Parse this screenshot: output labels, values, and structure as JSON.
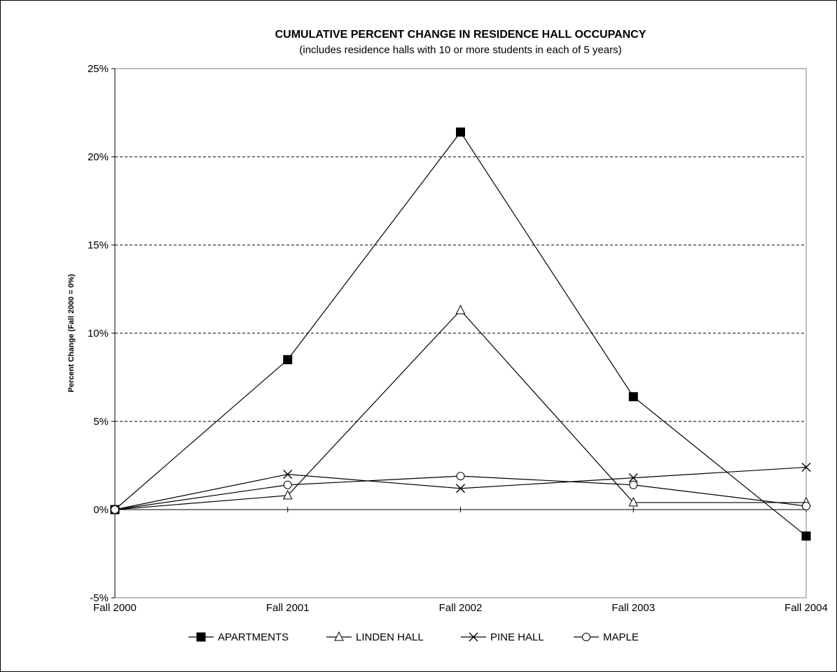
{
  "chart_data": {
    "type": "line",
    "title": "CUMULATIVE PERCENT CHANGE IN RESIDENCE HALL OCCUPANCY",
    "subtitle": "(includes residence halls with 10 or more students in each of 5 years)",
    "xlabel": "",
    "ylabel": "Percent Change (Fall 2000 = 0%)",
    "categories": [
      "Fall 2000",
      "Fall 2001",
      "Fall 2002",
      "Fall 2003",
      "Fall 2004"
    ],
    "ylim": [
      -5,
      25
    ],
    "yticks": [
      -5,
      0,
      5,
      10,
      15,
      20,
      25
    ],
    "ytick_labels": [
      "-5%",
      "0%",
      "5%",
      "10%",
      "15%",
      "20%",
      "25%"
    ],
    "grid": "horizontal dashed",
    "legend_position": "bottom",
    "series": [
      {
        "name": "APARTMENTS",
        "marker": "filled-square",
        "values": [
          0,
          8.5,
          21.4,
          6.4,
          -1.5
        ]
      },
      {
        "name": "LINDEN HALL",
        "marker": "open-triangle",
        "values": [
          0,
          0.8,
          11.3,
          0.4,
          0.4
        ]
      },
      {
        "name": "PINE HALL",
        "marker": "x-mark",
        "values": [
          0,
          2.0,
          1.2,
          1.8,
          2.4
        ]
      },
      {
        "name": "MAPLE",
        "marker": "open-circle",
        "values": [
          0,
          1.4,
          1.9,
          1.4,
          0.2
        ]
      }
    ]
  }
}
